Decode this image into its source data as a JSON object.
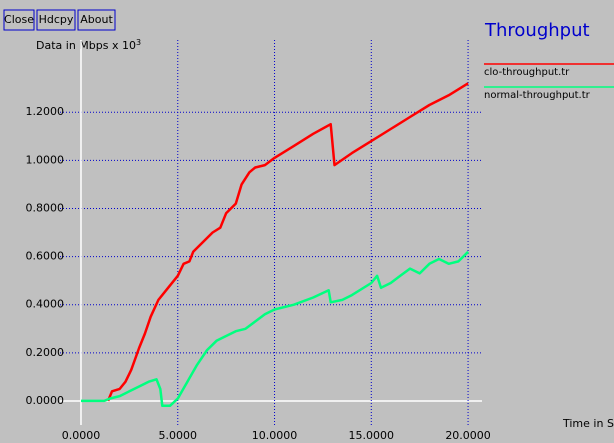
{
  "buttons": [
    "Close",
    "Hdcpy",
    "About"
  ],
  "chart_data": {
    "type": "line",
    "title": "Throughput",
    "ylabel": "Data in Mbps x 10",
    "ylabel_power": "3",
    "xlabel": "Time in Se",
    "grid": true,
    "xlim": [
      -1.085,
      20.72
    ],
    "ylim": [
      -0.1,
      1.5
    ],
    "xticks": [
      {
        "value": 0,
        "label": "0.0000"
      },
      {
        "value": 5,
        "label": "5.0000"
      },
      {
        "value": 10,
        "label": "10.0000"
      },
      {
        "value": 15,
        "label": "15.0000"
      },
      {
        "value": 20,
        "label": "20.0000"
      }
    ],
    "yticks": [
      {
        "value": 0,
        "label": "0.0000"
      },
      {
        "value": 0.2,
        "label": "0.2000"
      },
      {
        "value": 0.4,
        "label": "0.4000"
      },
      {
        "value": 0.6,
        "label": "0.6000"
      },
      {
        "value": 0.8,
        "label": "0.8000"
      },
      {
        "value": 1.0,
        "label": "1.0000"
      },
      {
        "value": 1.2,
        "label": "1.2000"
      }
    ],
    "series": [
      {
        "name": "clo-throughput.tr",
        "color": "#ff0000",
        "x": [
          1.4,
          1.6,
          2.0,
          2.3,
          2.6,
          3.0,
          3.3,
          3.6,
          4.0,
          4.5,
          5.0,
          5.3,
          5.6,
          5.8,
          6.3,
          6.8,
          7.2,
          7.5,
          8.0,
          8.3,
          8.7,
          9.0,
          9.5,
          10.0,
          11.0,
          12.0,
          12.9,
          13.1,
          14.0,
          15.0,
          16.0,
          17.0,
          18.0,
          19.0,
          20.0
        ],
        "values": [
          0.0,
          0.04,
          0.05,
          0.08,
          0.13,
          0.22,
          0.28,
          0.35,
          0.42,
          0.47,
          0.52,
          0.57,
          0.58,
          0.62,
          0.66,
          0.7,
          0.72,
          0.78,
          0.82,
          0.9,
          0.95,
          0.97,
          0.98,
          1.01,
          1.06,
          1.11,
          1.15,
          0.98,
          1.03,
          1.08,
          1.13,
          1.18,
          1.23,
          1.27,
          1.32
        ]
      },
      {
        "name": "normal-throughput.tr",
        "color": "#00ff7f",
        "x": [
          0,
          1.2,
          1.5,
          2.0,
          2.5,
          3.0,
          3.5,
          3.9,
          4.1,
          4.2,
          4.6,
          5.0,
          5.5,
          6.0,
          6.5,
          7.0,
          7.5,
          8.0,
          8.5,
          9.0,
          9.5,
          10.0,
          11.0,
          12.0,
          12.8,
          12.9,
          13.5,
          14.0,
          15.0,
          15.3,
          15.5,
          16.0,
          16.5,
          17.0,
          17.5,
          18.0,
          18.5,
          19.0,
          19.5,
          20.0
        ],
        "values": [
          0.0,
          0.0,
          0.01,
          0.02,
          0.04,
          0.06,
          0.08,
          0.09,
          0.05,
          -0.02,
          -0.02,
          0.01,
          0.08,
          0.15,
          0.21,
          0.25,
          0.27,
          0.29,
          0.3,
          0.33,
          0.36,
          0.38,
          0.4,
          0.43,
          0.46,
          0.41,
          0.42,
          0.44,
          0.49,
          0.52,
          0.47,
          0.49,
          0.52,
          0.55,
          0.53,
          0.57,
          0.59,
          0.57,
          0.58,
          0.62
        ]
      }
    ]
  }
}
